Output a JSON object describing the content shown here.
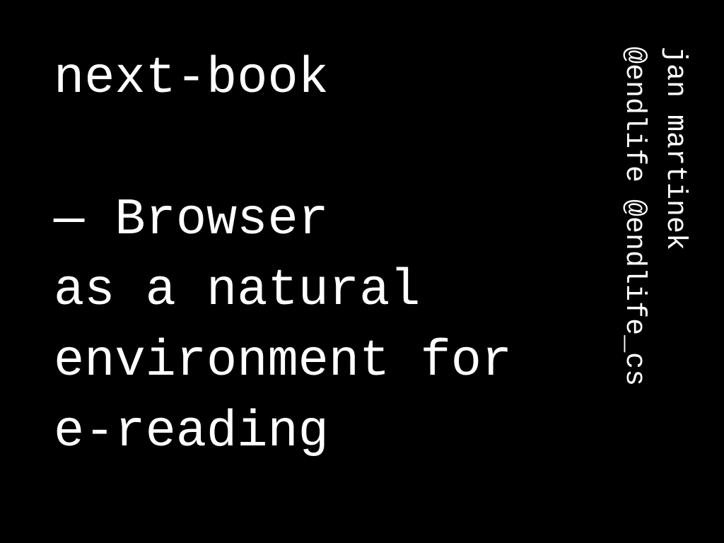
{
  "slide": {
    "title": "next-book",
    "lines": [
      "— Browser",
      "as a natural",
      "environment for",
      "e-reading"
    ],
    "author": {
      "name": "jan martinek",
      "handles": "@endlife @endlife_cs"
    }
  }
}
